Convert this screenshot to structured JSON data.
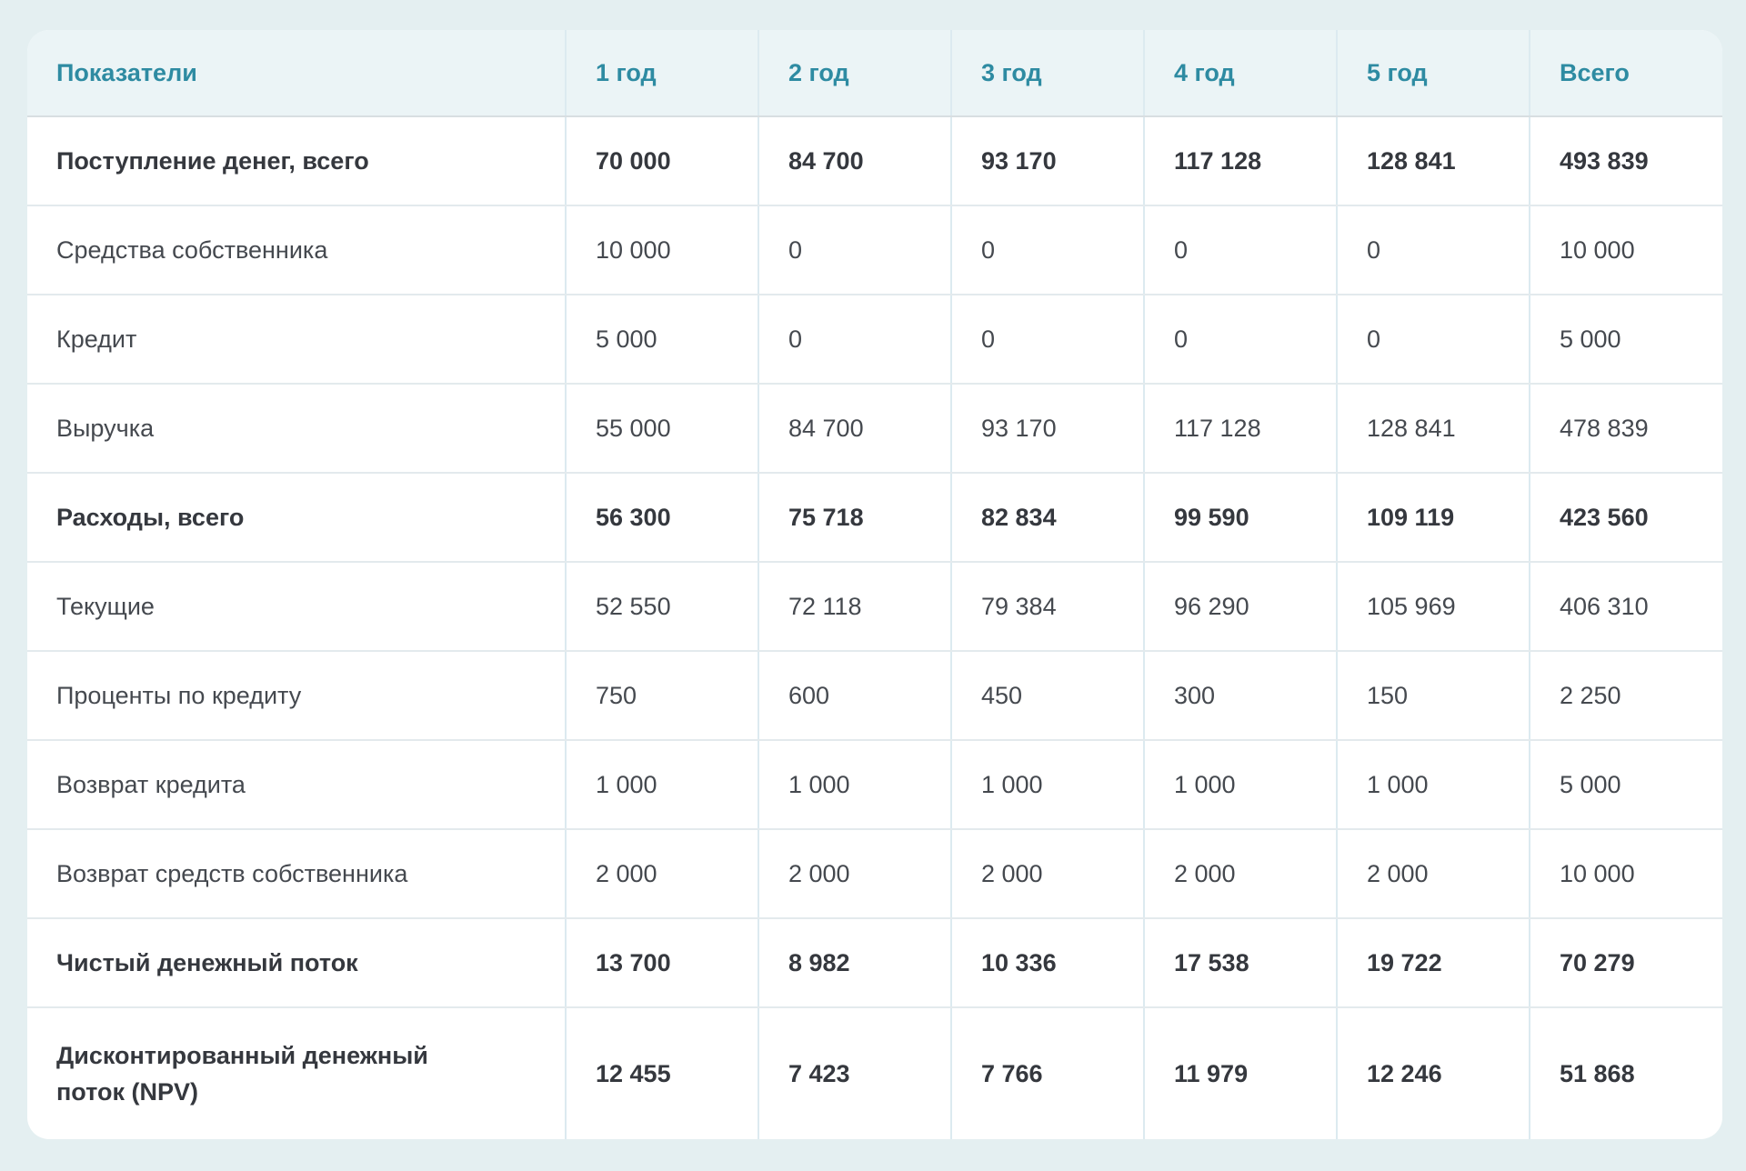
{
  "table": {
    "columns": [
      "Показатели",
      "1 год",
      "2 год",
      "3 год",
      "4 год",
      "5 год",
      "Всего"
    ],
    "rows": [
      {
        "label": "Поступление денег, всего",
        "bold": true,
        "values": [
          "70 000",
          "84 700",
          "93 170",
          "117 128",
          "128 841",
          "493 839"
        ]
      },
      {
        "label": "Средства собственника",
        "bold": false,
        "values": [
          "10 000",
          "0",
          "0",
          "0",
          "0",
          "10 000"
        ]
      },
      {
        "label": "Кредит",
        "bold": false,
        "values": [
          "5 000",
          "0",
          "0",
          "0",
          "0",
          "5 000"
        ]
      },
      {
        "label": "Выручка",
        "bold": false,
        "values": [
          "55 000",
          "84 700",
          "93 170",
          "117 128",
          "128 841",
          "478 839"
        ]
      },
      {
        "label": "Расходы, всего",
        "bold": true,
        "values": [
          "56 300",
          "75 718",
          "82 834",
          "99 590",
          "109 119",
          "423 560"
        ]
      },
      {
        "label": "Текущие",
        "bold": false,
        "values": [
          "52 550",
          "72 118",
          "79 384",
          "96 290",
          "105 969",
          "406 310"
        ]
      },
      {
        "label": "Проценты по кредиту",
        "bold": false,
        "values": [
          "750",
          "600",
          "450",
          "300",
          "150",
          "2 250"
        ]
      },
      {
        "label": "Возврат кредита",
        "bold": false,
        "values": [
          "1 000",
          "1 000",
          "1 000",
          "1 000",
          "1 000",
          "5 000"
        ]
      },
      {
        "label": "Возврат средств собственника",
        "bold": false,
        "values": [
          "2 000",
          "2 000",
          "2 000",
          "2 000",
          "2 000",
          "10 000"
        ]
      },
      {
        "label": "Чистый денежный поток",
        "bold": true,
        "values": [
          "13 700",
          "8 982",
          "10 336",
          "17 538",
          "19 722",
          "70 279"
        ]
      },
      {
        "label": "Дисконтированный денежный поток (NPV)",
        "bold": true,
        "values": [
          "12 455",
          "7 423",
          "7 766",
          "11 979",
          "12 246",
          "51 868"
        ]
      }
    ]
  },
  "colors": {
    "page_background": "#e4eff1",
    "card_background": "#ffffff",
    "header_background": "#ebf4f6",
    "header_text": "#2e8ba2",
    "body_text": "#45494f",
    "bold_text": "#35383e",
    "vertical_border": "#dceaf0",
    "horizontal_border": "#e3eaed"
  }
}
